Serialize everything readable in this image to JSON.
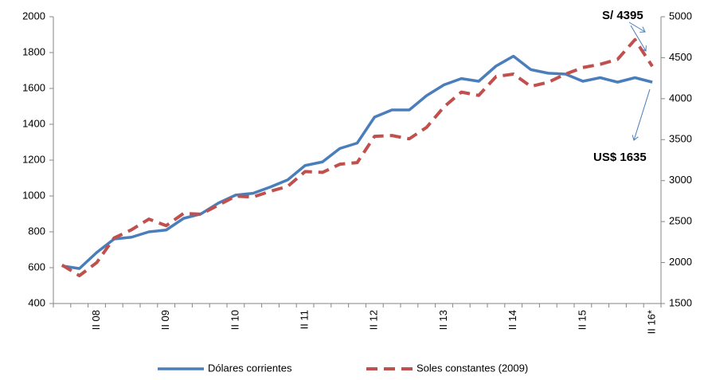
{
  "chart_data": {
    "type": "line",
    "categories": [
      null,
      null,
      "II 08",
      null,
      null,
      null,
      "II 09",
      null,
      null,
      null,
      "II 10",
      null,
      null,
      null,
      "II 11",
      null,
      null,
      null,
      "II 12",
      null,
      null,
      null,
      "II 13",
      null,
      null,
      null,
      "II 14",
      null,
      null,
      null,
      "II 15",
      null,
      null,
      null,
      "II 16*"
    ],
    "series": [
      {
        "name": "Dólares corrientes",
        "color": "#4a7ebb",
        "line_style": "solid",
        "values": [
          610,
          595,
          685,
          760,
          770,
          800,
          810,
          875,
          900,
          960,
          1005,
          1015,
          1050,
          1090,
          1170,
          1190,
          1265,
          1295,
          1440,
          1480,
          1480,
          1560,
          1620,
          1655,
          1640,
          1725,
          1780,
          1705,
          1685,
          1680,
          1640,
          1660,
          1635,
          1660,
          1635
        ]
      },
      {
        "name": "Soles constantes (2009)",
        "color": "#c0504d",
        "line_style": "dashed",
        "axis": "y2",
        "values": [
          1970,
          1840,
          2000,
          2300,
          2400,
          2530,
          2450,
          2600,
          2590,
          2700,
          2810,
          2800,
          2870,
          2930,
          3110,
          3100,
          3200,
          3220,
          3540,
          3550,
          3510,
          3650,
          3900,
          4080,
          4040,
          4270,
          4300,
          4150,
          4200,
          4300,
          4380,
          4420,
          4480,
          4720,
          4395
        ]
      }
    ],
    "ylim": [
      400,
      2000
    ],
    "yticks": [
      400,
      600,
      800,
      1000,
      1200,
      1400,
      1600,
      1800,
      2000
    ],
    "y2lim": [
      1500,
      5000
    ],
    "y2ticks": [
      1500,
      2000,
      2500,
      3000,
      3500,
      4000,
      4500,
      5000
    ],
    "annotations": [
      "S/ 4395",
      "US$ 1635"
    ],
    "grid": false,
    "legend": "bottom"
  }
}
